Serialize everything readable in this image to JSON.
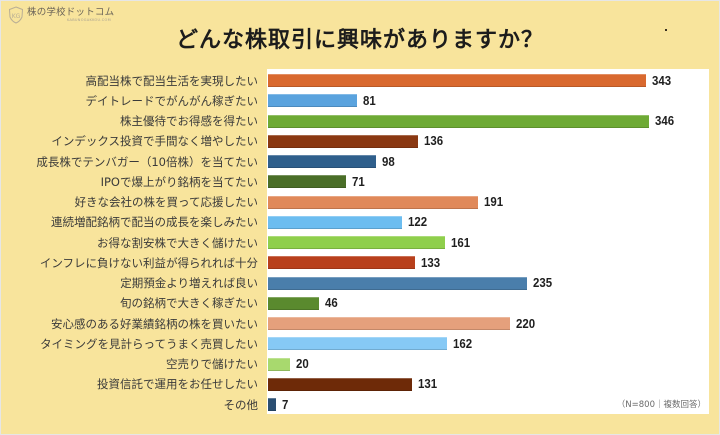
{
  "logo": {
    "icon": "kg-shield-icon",
    "icon_text": "KG",
    "name": "株の学校ドットコム",
    "subtext": "KABUNOGAKKOU.COM"
  },
  "title": "どんな株取引に興味がありますか？",
  "note": "（N=800｜複数回答）",
  "chart_data": {
    "type": "bar",
    "orientation": "horizontal",
    "title": "どんな株取引に興味がありますか？",
    "xlabel": "",
    "ylabel": "",
    "grid": false,
    "legend": "none",
    "annotation": "（N=800｜複数回答）",
    "categories": [
      "高配当株で配当生活を実現したい",
      "デイトレードでがんがん稼ぎたい",
      "株主優待でお得感を得たい",
      "インデックス投資で手間なく増やしたい",
      "成長株でテンバガー（10倍株）を当てたい",
      "IPOで爆上がり銘柄を当てたい",
      "好きな会社の株を買って応援したい",
      "連続増配銘柄で配当の成長を楽しみたい",
      "お得な割安株で大きく儲けたい",
      "インフレに負けない利益が得られれば十分",
      "定期預金より増えれば良い",
      "旬の銘柄で大きく稼ぎたい",
      "安心感のある好業績銘柄の株を買いたい",
      "タイミングを見計らってうまく売買したい",
      "空売りで儲けたい",
      "投資信託で運用をお任せしたい",
      "その他"
    ],
    "values": [
      343,
      81,
      346,
      136,
      98,
      71,
      191,
      122,
      161,
      133,
      235,
      46,
      220,
      162,
      20,
      131,
      7
    ],
    "colors": [
      "#d9692f",
      "#5aa3de",
      "#6eaa35",
      "#8a3812",
      "#2f5f8c",
      "#4a6e28",
      "#e0895a",
      "#6cbdf0",
      "#8fcf4c",
      "#b8401c",
      "#4a7eab",
      "#5a8a2e",
      "#e5a07c",
      "#86c9f5",
      "#a8d96e",
      "#6e2a08",
      "#2a4e72"
    ],
    "xlim": [
      0,
      400
    ]
  }
}
